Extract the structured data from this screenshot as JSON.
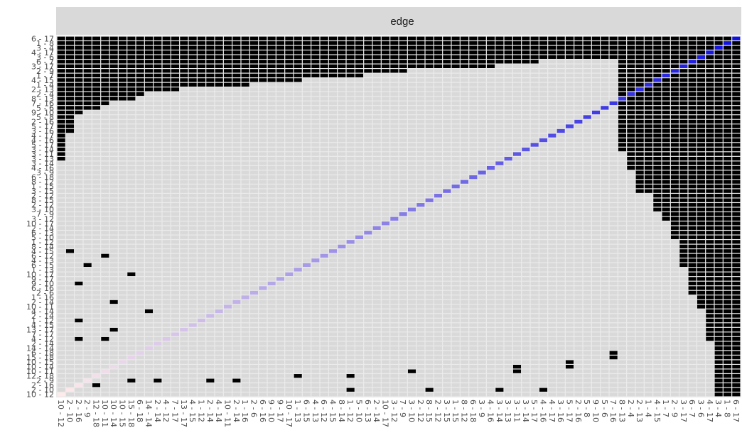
{
  "chart_data": {
    "type": "heatmap",
    "title": "",
    "facet_label": "edge",
    "n": 78,
    "x_tick_labels": [
      "10 - 12",
      "2 - 10",
      "2 - 16",
      "2 - 9",
      "12 - 18",
      "10 - 11",
      "10 - 14",
      "10 - 15",
      "15 - 18",
      "6 - 18",
      "14 - 14",
      "2 - 14",
      "4 - 12",
      "7 - 17",
      "13 - 17",
      "4 - 15",
      "1 - 12",
      "2 - 14",
      "4 - 14",
      "10 - 11",
      "2 - 14",
      "1 - 16",
      "2 - 6",
      "6 - 16",
      "9 - 10",
      "9 - 17",
      "10 - 17",
      "1 - 13",
      "6 - 15",
      "4 - 13",
      "6 - 12",
      "4 - 15",
      "8 - 14",
      "1 - 12",
      "5 - 10",
      "6 - 13",
      "2 - 14",
      "10 - 17",
      "3 - 12",
      "7 - 9",
      "3 - 10",
      "2 - 12",
      "8 - 15",
      "2 - 12",
      "3 - 15",
      "1 - 15",
      "8 - 12",
      "6 - 18",
      "3 - 9",
      "4 - 16",
      "3 - 14",
      "3 - 13",
      "3 - 11",
      "3 - 14",
      "5 - 17",
      "4 - 16",
      "4 - 17",
      "3 - 16",
      "5 - 17",
      "2 - 16",
      "5 - 8",
      "9 - 10",
      "5 - 6",
      "7 - 16",
      "8 - 13",
      "2 - 4",
      "2 - 13",
      "1 - 4",
      "4 - 15",
      "1 - 7",
      "2 - 9",
      "3 - 17",
      "6 - 7",
      "3 - 6",
      "4 - 17",
      "3 - 4",
      "1 - 8",
      "6 - 17"
    ],
    "y_tick_labels": [
      "10 - 12",
      "2 - 10",
      "2 - 16",
      "2 - 9",
      "12 - 18",
      "10 - 11",
      "10 - 14",
      "10 - 15",
      "15 - 18",
      "6 - 18",
      "14 - 14",
      "2 - 14",
      "4 - 12",
      "7 - 17",
      "13 - 17",
      "4 - 15",
      "1 - 12",
      "2 - 14",
      "4 - 14",
      "10 - 11",
      "2 - 14",
      "1 - 16",
      "2 - 6",
      "6 - 16",
      "9 - 10",
      "9 - 17",
      "10 - 17",
      "1 - 13",
      "6 - 15",
      "4 - 13",
      "6 - 12",
      "4 - 15",
      "8 - 14",
      "1 - 12",
      "5 - 10",
      "6 - 13",
      "2 - 14",
      "10 - 17",
      "3 - 12",
      "7 - 9",
      "3 - 10",
      "2 - 12",
      "8 - 15",
      "2 - 12",
      "3 - 15",
      "1 - 15",
      "8 - 12",
      "6 - 18",
      "3 - 9",
      "4 - 16",
      "3 - 14",
      "3 - 13",
      "3 - 11",
      "3 - 14",
      "5 - 17",
      "4 - 16",
      "4 - 17",
      "3 - 16",
      "5 - 17",
      "2 - 16",
      "5 - 8",
      "9 - 10",
      "5 - 6",
      "7 - 16",
      "8 - 13",
      "2 - 4",
      "2 - 13",
      "1 - 4",
      "4 - 15",
      "1 - 7",
      "2 - 9",
      "3 - 17",
      "6 - 7",
      "3 - 6",
      "4 - 17",
      "3 - 4",
      "1 - 8",
      "6 - 17"
    ],
    "cell_colors": {
      "empty": "#d9d9d9",
      "filled": "#000000",
      "diagonal_low": "#ffeaea",
      "diagonal_high": "#1010e0"
    },
    "black_column_heights_from_right": [
      78,
      78,
      78,
      66,
      59,
      56,
      50,
      44,
      40,
      38,
      34,
      34,
      29,
      25
    ],
    "black_row_lengths_from_top": [
      78,
      78,
      71,
      67,
      64,
      55,
      50,
      40,
      35,
      28,
      22,
      14,
      10,
      9,
      6,
      5,
      3,
      2,
      2,
      2,
      2,
      1,
      1,
      1,
      1,
      1,
      1
    ],
    "black_scatter_cells": [
      [
        1,
        33
      ],
      [
        1,
        42
      ],
      [
        1,
        50
      ],
      [
        1,
        55
      ],
      [
        2,
        2
      ],
      [
        2,
        4
      ],
      [
        3,
        8
      ],
      [
        3,
        11
      ],
      [
        3,
        17
      ],
      [
        3,
        20
      ],
      [
        4,
        27
      ],
      [
        4,
        33
      ],
      [
        5,
        40
      ],
      [
        5,
        52
      ],
      [
        6,
        52
      ],
      [
        6,
        58
      ],
      [
        7,
        58
      ],
      [
        8,
        63
      ],
      [
        9,
        63
      ],
      [
        12,
        2
      ],
      [
        12,
        5
      ],
      [
        14,
        6
      ],
      [
        16,
        2
      ],
      [
        18,
        10
      ],
      [
        20,
        6
      ],
      [
        24,
        2
      ],
      [
        26,
        8
      ],
      [
        28,
        3
      ],
      [
        30,
        5
      ],
      [
        31,
        1
      ]
    ],
    "grid": false,
    "legend": "none"
  }
}
